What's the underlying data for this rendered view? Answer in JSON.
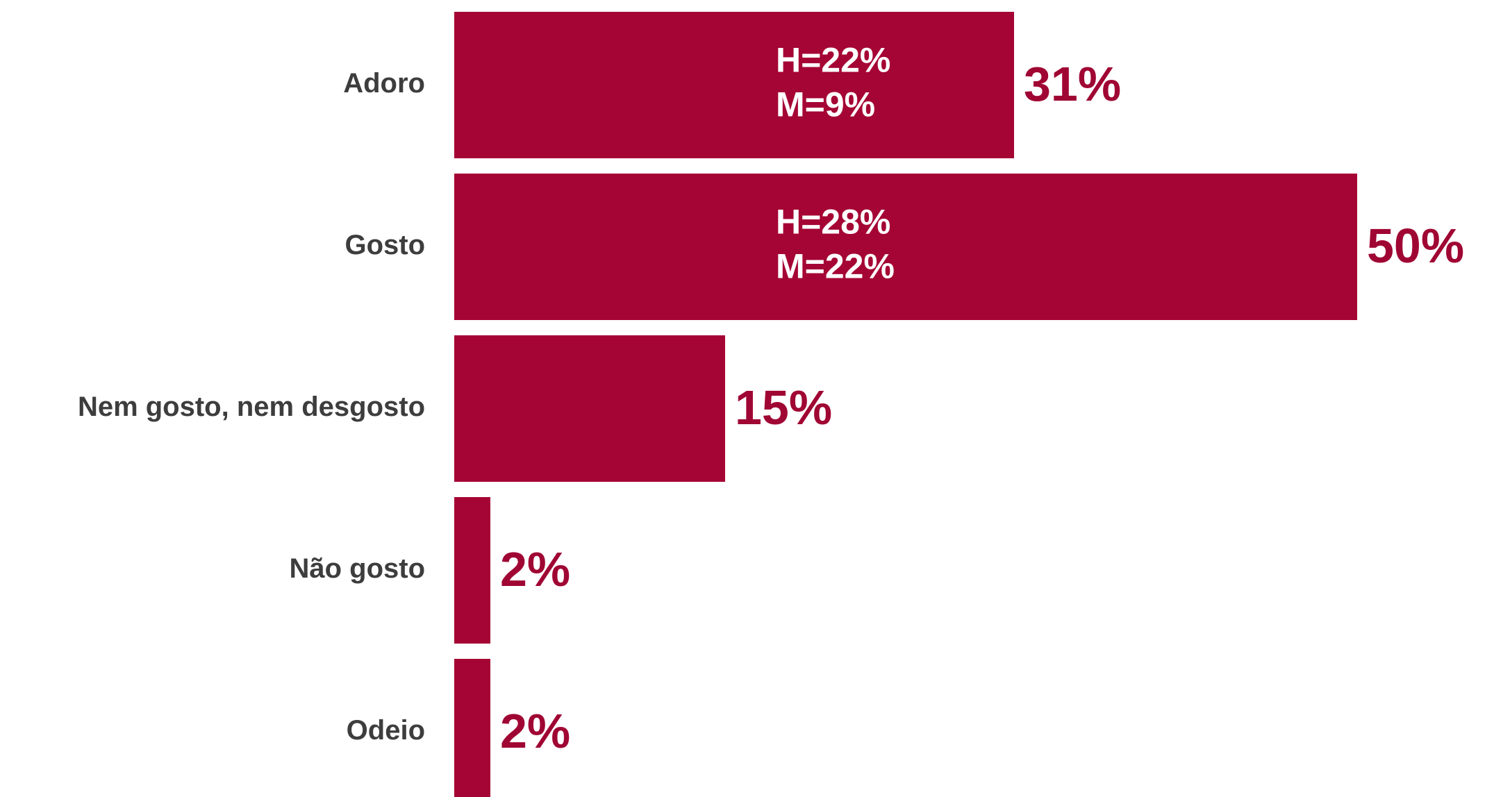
{
  "chart_data": {
    "type": "bar",
    "orientation": "horizontal",
    "categories": [
      "Adoro",
      "Gosto",
      "Nem gosto, nem desgosto",
      "Não gosto",
      "Odeio"
    ],
    "values": [
      31,
      50,
      15,
      2,
      2
    ],
    "value_labels": [
      "31%",
      "50%",
      "15%",
      "2%",
      "2%"
    ],
    "inner_labels": [
      [
        "H=22%",
        "M=9%"
      ],
      [
        "H=28%",
        "M=22%"
      ],
      null,
      null,
      null
    ],
    "color": "#a50534"
  }
}
